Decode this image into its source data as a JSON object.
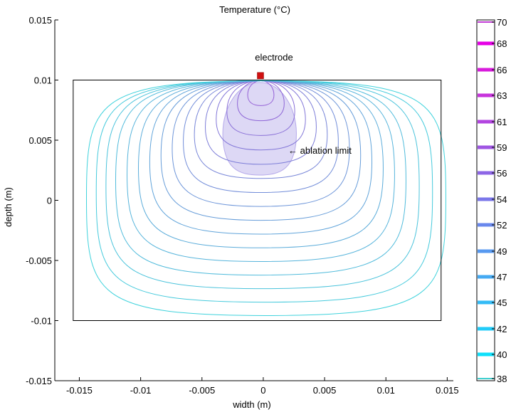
{
  "chart_data": {
    "type": "contour",
    "title": "Temperature (°C)",
    "xlabel": "width (m)",
    "ylabel": "depth (m)",
    "xlim": [
      -0.017,
      0.0155
    ],
    "ylim": [
      -0.015,
      0.015
    ],
    "xticks": [
      {
        "value": -0.015,
        "label": "-0.015"
      },
      {
        "value": -0.01,
        "label": "-0.01"
      },
      {
        "value": -0.005,
        "label": "-0.005"
      },
      {
        "value": 0,
        "label": "0"
      },
      {
        "value": 0.005,
        "label": "0.005"
      },
      {
        "value": 0.01,
        "label": "0.01"
      },
      {
        "value": 0.015,
        "label": "0.015"
      }
    ],
    "yticks": [
      {
        "value": 0.015,
        "label": "0.015"
      },
      {
        "value": 0.01,
        "label": "0.01"
      },
      {
        "value": 0.005,
        "label": "0.005"
      },
      {
        "value": 0,
        "label": "0"
      },
      {
        "value": -0.005,
        "label": "-0.005"
      },
      {
        "value": -0.01,
        "label": "-0.01"
      },
      {
        "value": -0.015,
        "label": "-0.015"
      }
    ],
    "domain": {
      "x": [
        -0.0155,
        0.0145
      ],
      "y": [
        -0.01,
        0.01
      ]
    },
    "electrode": {
      "x": -0.0002,
      "y": 0.0101
    },
    "contour_levels": [
      38,
      40,
      42,
      45,
      47,
      49,
      52,
      54,
      56,
      59,
      61,
      63,
      66,
      68,
      70
    ],
    "ablation_region": {
      "center_x": -0.0003,
      "top_y": 0.0098,
      "half_width": 0.003,
      "bottom_y": 0.0021
    },
    "colorbar": {
      "ticks": [
        {
          "value": 70,
          "label": "70",
          "color": "#c23cd6"
        },
        {
          "value": 68,
          "label": "68",
          "color": "#e600e6"
        },
        {
          "value": 66,
          "label": "66",
          "color": "#d81cdc"
        },
        {
          "value": 63,
          "label": "63",
          "color": "#c733dc"
        },
        {
          "value": 61,
          "label": "61",
          "color": "#b244e0"
        },
        {
          "value": 59,
          "label": "59",
          "color": "#9f55e3"
        },
        {
          "value": 56,
          "label": "56",
          "color": "#8d66e6"
        },
        {
          "value": 54,
          "label": "54",
          "color": "#7b77ea"
        },
        {
          "value": 52,
          "label": "52",
          "color": "#6988ed"
        },
        {
          "value": 49,
          "label": "49",
          "color": "#5799f0"
        },
        {
          "value": 47,
          "label": "47",
          "color": "#45aaf3"
        },
        {
          "value": 45,
          "label": "45",
          "color": "#33bbf6"
        },
        {
          "value": 42,
          "label": "42",
          "color": "#21ccf9"
        },
        {
          "value": 40,
          "label": "40",
          "color": "#0fe0fb"
        },
        {
          "value": 38,
          "label": "38",
          "color": "#40d0d0"
        }
      ]
    },
    "annotations": [
      {
        "text": "electrode"
      },
      {
        "text": "← ablation limit"
      }
    ]
  }
}
